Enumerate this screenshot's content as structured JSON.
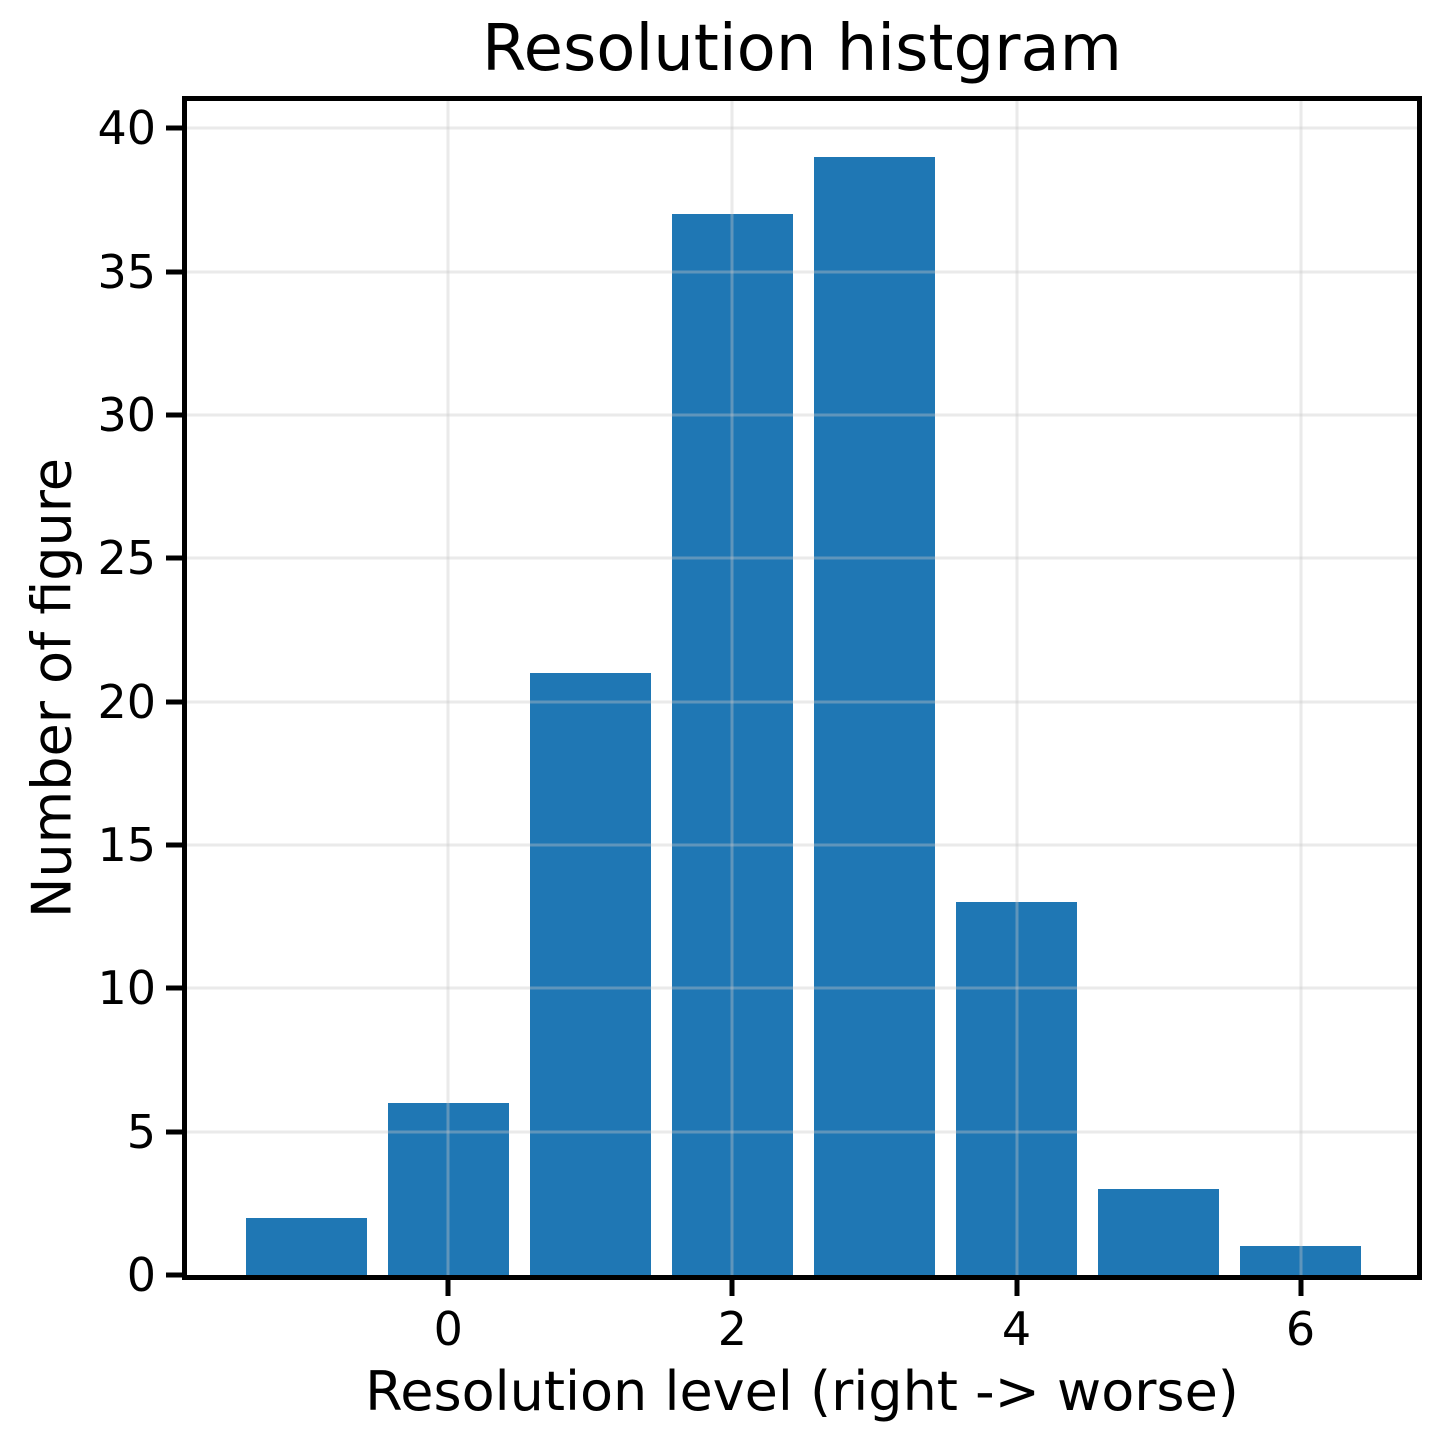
{
  "chart_data": {
    "type": "bar",
    "title": "Resolution histgram",
    "xlabel": "Resolution level (right -> worse)",
    "ylabel": "Number of figure",
    "categories": [
      -1,
      0,
      1,
      2,
      3,
      4,
      5,
      6
    ],
    "values": [
      2,
      6,
      21,
      37,
      39,
      13,
      3,
      1
    ],
    "bar_width": 0.85,
    "bar_color": "#1f77b4",
    "xlim": [
      -1.84,
      6.82
    ],
    "ylim": [
      0,
      40.95
    ],
    "xticks": [
      0,
      2,
      4,
      6
    ],
    "yticks": [
      0,
      5,
      10,
      15,
      20,
      25,
      30,
      35,
      40
    ],
    "grid": true,
    "background_color": "#ffffff",
    "spine_color": "#000000"
  }
}
